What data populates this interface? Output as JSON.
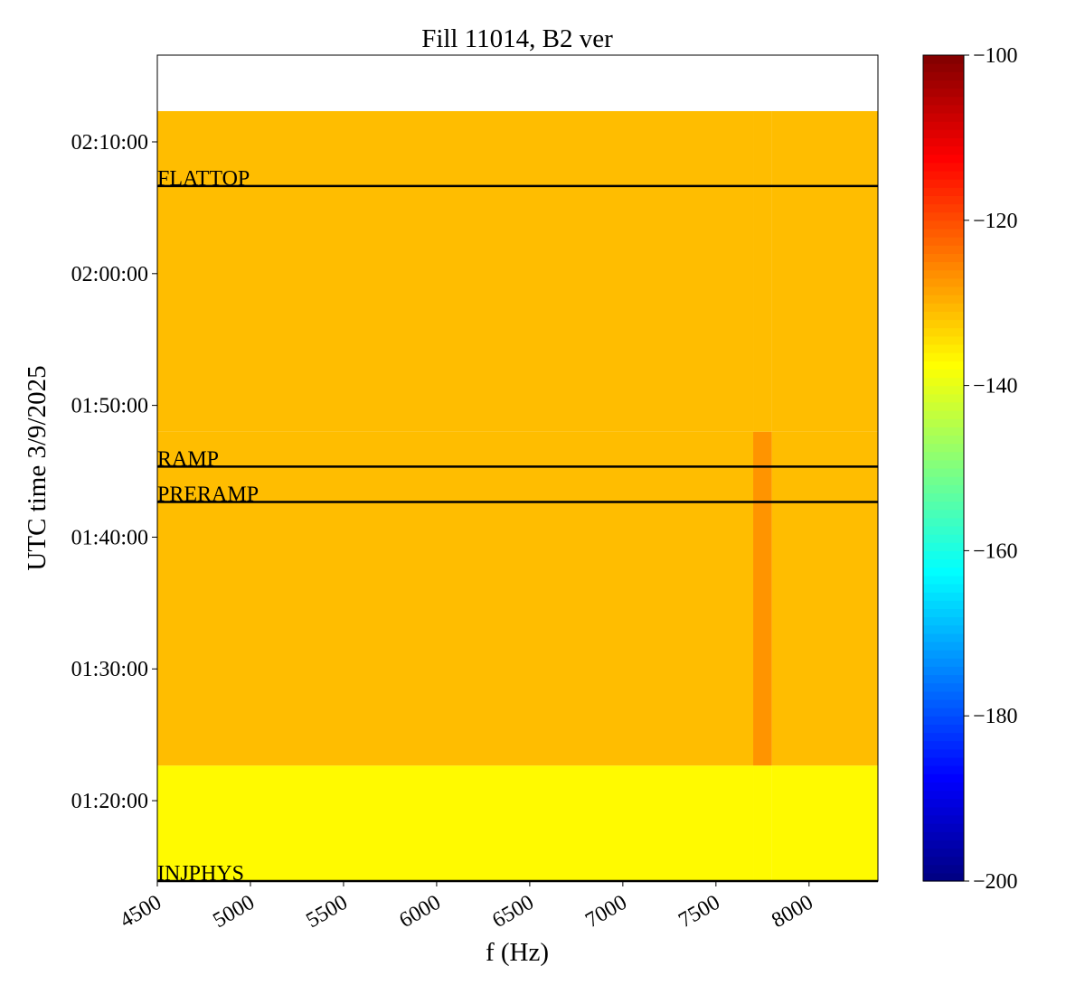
{
  "chart_data": {
    "type": "spectrogram",
    "title": "Fill 11014, B2 ver",
    "xlabel": "f (Hz)",
    "ylabel": "UTC time 3/9/2025",
    "xlim": [
      4500,
      8370
    ],
    "xticks": [
      4500,
      5000,
      5500,
      6000,
      6500,
      7000,
      7500,
      8000
    ],
    "ylim": [
      "01:13:54",
      "02:16:35"
    ],
    "yticks": [
      "01:20:00",
      "01:30:00",
      "01:40:00",
      "01:50:00",
      "02:00:00",
      "02:10:00"
    ],
    "x_edges": [
      4500,
      7700,
      7800,
      8370
    ],
    "y_edges": [
      "01:13:54",
      "01:22:40",
      "01:48:00",
      "02:12:20"
    ],
    "z": [
      [
        -137,
        -137,
        -137
      ],
      [
        -131,
        -127,
        -131
      ],
      [
        -131,
        -131,
        -131
      ]
    ],
    "colormap": "jet",
    "zlim": [
      -200,
      -100
    ],
    "zticks": [
      {
        "value": -200,
        "label": "−200"
      },
      {
        "value": -180,
        "label": "−180"
      },
      {
        "value": -160,
        "label": "−160"
      },
      {
        "value": -140,
        "label": "−140"
      },
      {
        "value": -120,
        "label": "−120"
      },
      {
        "value": -100,
        "label": "−100"
      }
    ],
    "events": [
      {
        "name": "INJPHYS",
        "time": "01:13:54"
      },
      {
        "name": "PRERAMP",
        "time": "01:42:40"
      },
      {
        "name": "RAMP",
        "time": "01:45:21"
      },
      {
        "name": "FLATTOP",
        "time": "02:06:39"
      }
    ]
  }
}
